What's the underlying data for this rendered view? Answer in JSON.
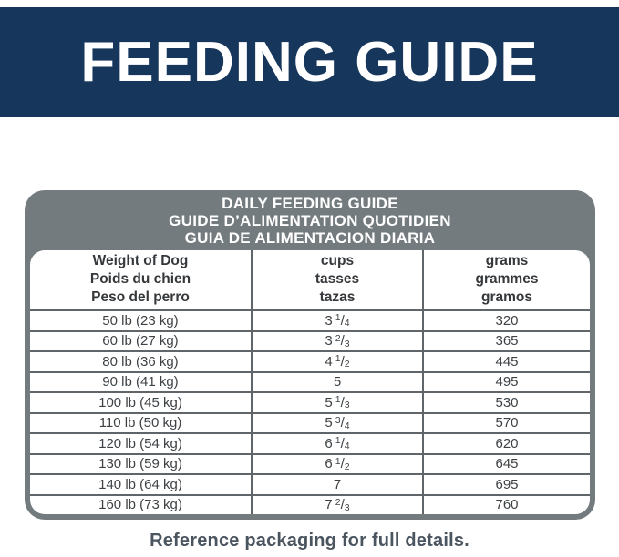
{
  "banner": {
    "title": "FEEDING GUIDE"
  },
  "card": {
    "title_lines": [
      "DAILY FEEDING GUIDE",
      "GUIDE D’ALIMENTATION QUOTIDIEN",
      "GUIA DE ALIMENTACION DIARIA"
    ],
    "columns": [
      {
        "id": "weight",
        "lines": [
          "Weight of Dog",
          "Poids du chien",
          "Peso del perro"
        ]
      },
      {
        "id": "cups",
        "lines": [
          "cups",
          "tasses",
          "tazas"
        ]
      },
      {
        "id": "grams",
        "lines": [
          "grams",
          "grammes",
          "gramos"
        ]
      }
    ],
    "rows": [
      {
        "weight": "50 lb (23 kg)",
        "cups": {
          "whole": "3",
          "num": "1",
          "den": "4"
        },
        "grams": "320"
      },
      {
        "weight": "60 lb (27 kg)",
        "cups": {
          "whole": "3",
          "num": "2",
          "den": "3"
        },
        "grams": "365"
      },
      {
        "weight": "80 lb (36 kg)",
        "cups": {
          "whole": "4",
          "num": "1",
          "den": "2"
        },
        "grams": "445"
      },
      {
        "weight": "90 lb (41 kg)",
        "cups": {
          "whole": "5",
          "num": "",
          "den": ""
        },
        "grams": "495"
      },
      {
        "weight": "100 lb (45 kg)",
        "cups": {
          "whole": "5",
          "num": "1",
          "den": "3"
        },
        "grams": "530"
      },
      {
        "weight": "110 lb (50 kg)",
        "cups": {
          "whole": "5",
          "num": "3",
          "den": "4"
        },
        "grams": "570"
      },
      {
        "weight": "120 lb (54 kg)",
        "cups": {
          "whole": "6",
          "num": "1",
          "den": "4"
        },
        "grams": "620"
      },
      {
        "weight": "130 lb (59 kg)",
        "cups": {
          "whole": "6",
          "num": "1",
          "den": "2"
        },
        "grams": "645"
      },
      {
        "weight": "140 lb (64 kg)",
        "cups": {
          "whole": "7",
          "num": "",
          "den": ""
        },
        "grams": "695"
      },
      {
        "weight": "160 lb (73 kg)",
        "cups": {
          "whole": "7",
          "num": "2",
          "den": "3"
        },
        "grams": "760"
      }
    ]
  },
  "footer": {
    "note": "Reference packaging for full details."
  },
  "colors": {
    "banner_bg": "#16365c",
    "card_bg": "#747b7e",
    "grid_line": "#5f6568",
    "title_text": "#ffffff",
    "cell_text": "#3e4245",
    "footer_text": "#4b5560"
  },
  "chart_data": {
    "type": "table",
    "title": "DAILY FEEDING GUIDE",
    "categories": [
      "50 lb (23 kg)",
      "60 lb (27 kg)",
      "80 lb (36 kg)",
      "90 lb (41 kg)",
      "100 lb (45 kg)",
      "110 lb (50 kg)",
      "120 lb (54 kg)",
      "130 lb (59 kg)",
      "140 lb (64 kg)",
      "160 lb (73 kg)"
    ],
    "series": [
      {
        "name": "cups",
        "values": [
          3.25,
          3.67,
          4.5,
          5,
          5.33,
          5.75,
          6.25,
          6.5,
          7,
          7.67
        ]
      },
      {
        "name": "grams",
        "values": [
          320,
          365,
          445,
          495,
          530,
          570,
          620,
          645,
          695,
          760
        ]
      }
    ]
  }
}
